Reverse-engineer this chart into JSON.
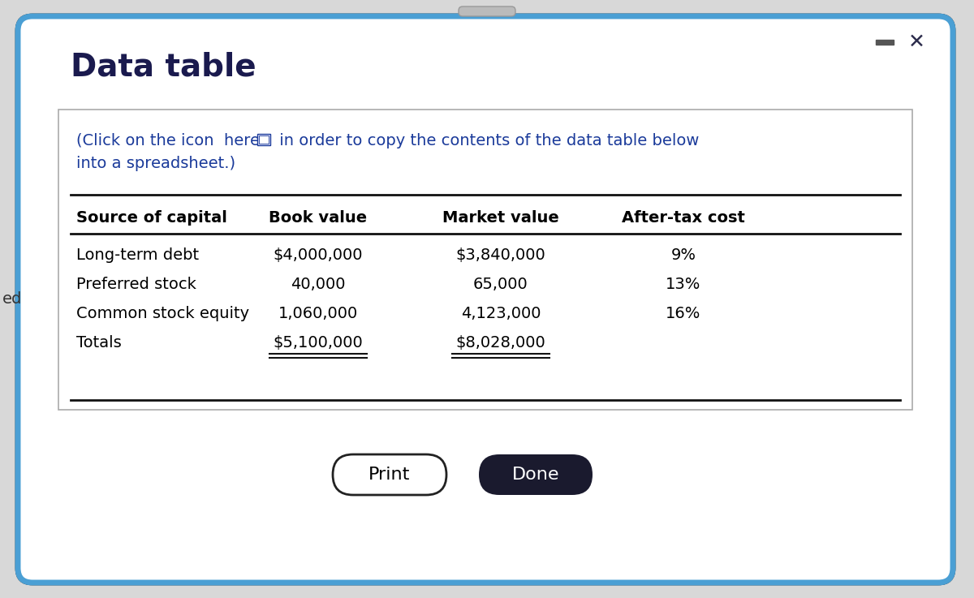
{
  "title": "Data table",
  "col_headers": [
    "Source of capital",
    "Book value",
    "Market value",
    "After-tax cost"
  ],
  "rows": [
    [
      "Long-term debt",
      "$4,000,000",
      "$3,840,000",
      "9%"
    ],
    [
      "Preferred stock",
      "40,000",
      "65,000",
      "13%"
    ],
    [
      "Common stock equity",
      "1,060,000",
      "4,123,000",
      "16%"
    ],
    [
      "Totals",
      "$5,100,000",
      "$8,028,000",
      ""
    ]
  ],
  "totals_row_index": 3,
  "button_print": "Print",
  "button_done": "Done",
  "outer_bg": "#d8d8d8",
  "dialog_bg": "#ffffff",
  "border_color_outer": "#2a2a2a",
  "border_color_blue": "#4a9fd4",
  "table_border_color": "#111111",
  "title_color": "#1a1a4e",
  "subtitle_color": "#1a3a9a",
  "text_color": "#000000",
  "header_text_color": "#000000",
  "print_btn_color": "#ffffff",
  "print_btn_border": "#222222",
  "done_btn_color": "#1a1a2e",
  "done_btn_text": "#ffffff",
  "left_clip_text": "ed",
  "left_clip_color": "#333333",
  "minimize_color": "#555555",
  "close_color": "#2a2a4a",
  "inner_box_border": "#aaaaaa",
  "title_fontsize": 28,
  "subtitle_fontsize": 14,
  "table_header_fontsize": 14,
  "table_data_fontsize": 14,
  "btn_fontsize": 16
}
